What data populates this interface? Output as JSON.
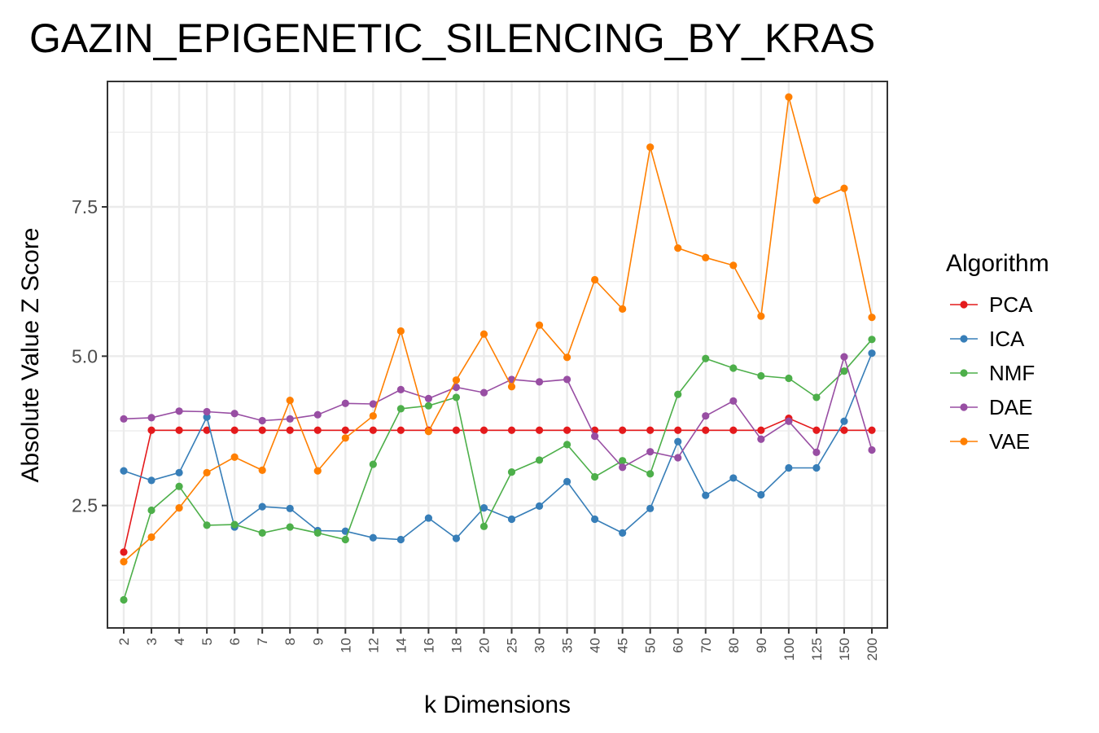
{
  "chart_data": {
    "type": "line",
    "title": "GAZIN_EPIGENETIC_SILENCING_BY_KRAS",
    "xlabel": "k Dimensions",
    "ylabel": "Absolute Value Z Score",
    "x": [
      "2",
      "3",
      "4",
      "5",
      "6",
      "7",
      "8",
      "9",
      "10",
      "12",
      "14",
      "16",
      "18",
      "20",
      "25",
      "30",
      "35",
      "40",
      "45",
      "50",
      "60",
      "70",
      "80",
      "90",
      "100",
      "125",
      "150",
      "200"
    ],
    "ylim": [
      0.45,
      9.6
    ],
    "yticks": [
      2.5,
      5.0,
      7.5
    ],
    "ytick_labels": [
      "2.5",
      "5.0",
      "7.5"
    ],
    "grid": true,
    "legend_title": "Algorithm",
    "legend_position": "right",
    "series": [
      {
        "name": "PCA",
        "color": "#e41a1c",
        "values": [
          1.72,
          3.76,
          3.76,
          3.76,
          3.76,
          3.76,
          3.76,
          3.76,
          3.76,
          3.76,
          3.76,
          3.76,
          3.76,
          3.76,
          3.76,
          3.76,
          3.76,
          3.76,
          3.76,
          3.76,
          3.76,
          3.76,
          3.76,
          3.76,
          3.96,
          3.76,
          3.76,
          3.76
        ]
      },
      {
        "name": "ICA",
        "color": "#377eb8",
        "values": [
          3.08,
          2.92,
          3.05,
          3.98,
          2.14,
          2.48,
          2.45,
          2.08,
          2.07,
          1.96,
          1.93,
          2.29,
          1.95,
          2.46,
          2.27,
          2.49,
          2.9,
          2.27,
          2.04,
          2.45,
          3.57,
          2.67,
          2.96,
          2.68,
          3.13,
          3.13,
          3.91,
          5.05
        ]
      },
      {
        "name": "NMF",
        "color": "#4daf4a",
        "values": [
          0.92,
          2.42,
          2.82,
          2.17,
          2.18,
          2.04,
          2.14,
          2.04,
          1.93,
          3.19,
          4.12,
          4.17,
          4.31,
          2.15,
          3.06,
          3.26,
          3.52,
          2.98,
          3.25,
          3.03,
          4.36,
          4.96,
          4.8,
          4.67,
          4.63,
          4.31,
          4.75,
          5.28
        ]
      },
      {
        "name": "DAE",
        "color": "#984ea3",
        "values": [
          3.95,
          3.97,
          4.08,
          4.07,
          4.04,
          3.92,
          3.95,
          4.02,
          4.21,
          4.2,
          4.44,
          4.29,
          4.48,
          4.39,
          4.61,
          4.57,
          4.61,
          3.66,
          3.14,
          3.4,
          3.3,
          4.0,
          4.25,
          3.61,
          3.91,
          3.39,
          4.99,
          3.43
        ]
      },
      {
        "name": "VAE",
        "color": "#ff7f00",
        "values": [
          1.56,
          1.97,
          2.46,
          3.05,
          3.31,
          3.09,
          4.26,
          3.08,
          3.63,
          4.0,
          5.42,
          3.74,
          4.6,
          5.37,
          4.49,
          5.52,
          4.98,
          6.28,
          5.79,
          8.5,
          6.81,
          6.65,
          6.52,
          5.67,
          9.34,
          7.61,
          7.81,
          5.65
        ]
      }
    ]
  }
}
